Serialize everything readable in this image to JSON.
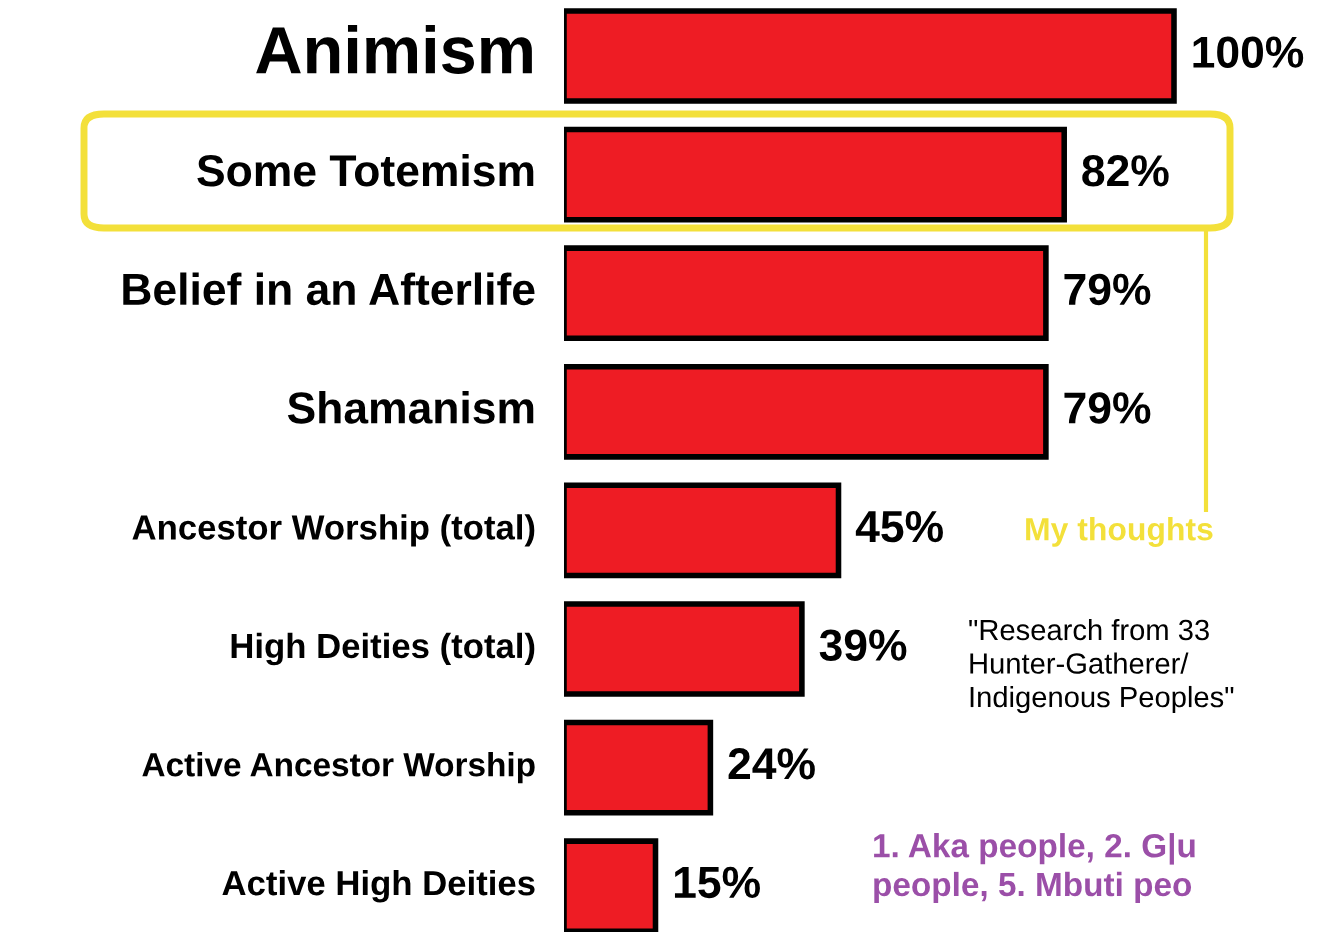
{
  "chart_data": {
    "type": "bar",
    "orientation": "horizontal",
    "categories": [
      "Animism",
      "Some Totemism",
      "Belief in an Afterlife",
      "Shamanism",
      "Ancestor Worship (total)",
      "High Deities (total)",
      "Active Ancestor Worship",
      "Active High Deities"
    ],
    "values": [
      100,
      82,
      79,
      79,
      45,
      39,
      24,
      15
    ],
    "value_labels": [
      "100%",
      "82%",
      "79%",
      "79%",
      "45%",
      "39%",
      "24%",
      "15%"
    ],
    "color": "#ee1c24",
    "annotations": [
      "My thoughts",
      "\"Research from 33\nHunter-Gatherer/\nIndigenous Peoples\"",
      "1. Aka people, 2. G|u\npeople, 5. Mbuti peo"
    ]
  }
}
